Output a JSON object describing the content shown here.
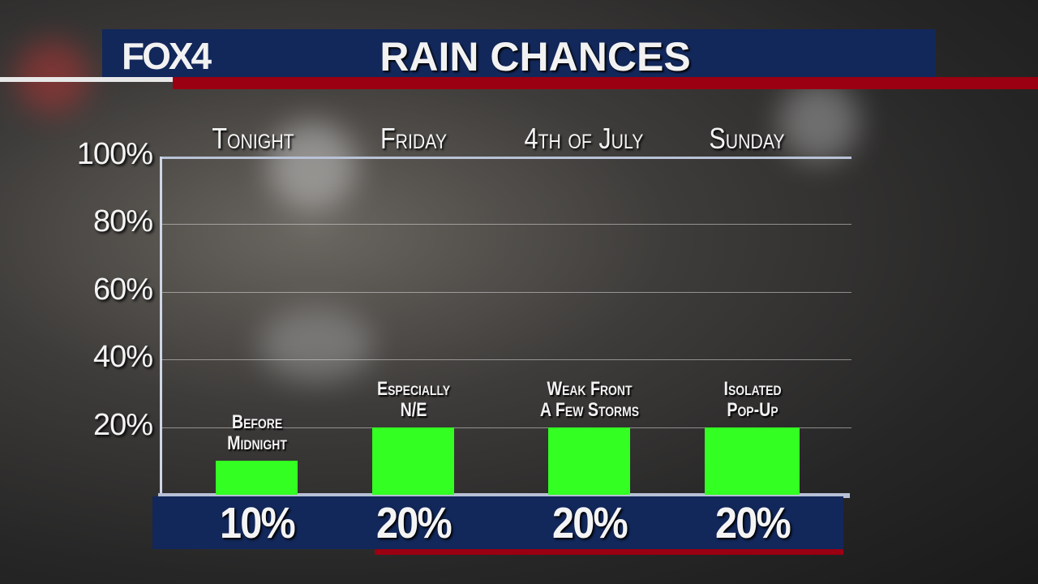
{
  "header": {
    "logo": "FOX4",
    "title": "RAIN CHANCES"
  },
  "colors": {
    "navy": "#12275a",
    "red": "#9a0011",
    "bar": "#33ff22"
  },
  "chart_data": {
    "type": "bar",
    "title": "RAIN CHANCES",
    "categories": [
      "Tonight",
      "Friday",
      "4th of July",
      "Sunday"
    ],
    "values": [
      10,
      20,
      20,
      20
    ],
    "value_labels": [
      "10%",
      "20%",
      "20%",
      "20%"
    ],
    "annotations": [
      [
        "Before",
        "Midnight"
      ],
      [
        "Especially",
        "N/E"
      ],
      [
        "Weak Front",
        "A Few Storms"
      ],
      [
        "Isolated",
        "Pop-Up"
      ]
    ],
    "ylim": [
      0,
      100
    ],
    "yticks": [
      20,
      40,
      60,
      80,
      100
    ],
    "ytick_labels": [
      "20%",
      "40%",
      "60%",
      "80%",
      "100%"
    ],
    "grid": true,
    "legend": "none"
  }
}
